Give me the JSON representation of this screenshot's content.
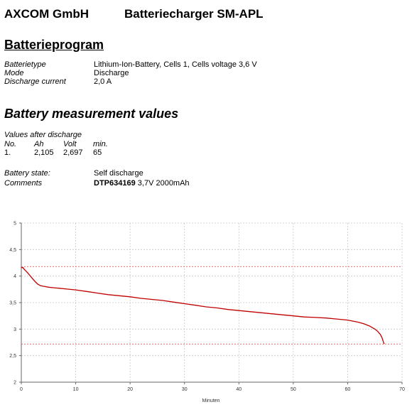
{
  "header": {
    "company": "AXCOM GmbH",
    "product": "Batteriecharger SM-APL"
  },
  "program": {
    "title": "Batterieprogram",
    "fields": [
      {
        "label": "Batterietype",
        "value": "Lithium-Ion-Battery, Cells 1, Cells voltage 3,6 V"
      },
      {
        "label": "Mode",
        "value": "Discharge"
      },
      {
        "label": "Discharge current",
        "value": "2,0 A"
      }
    ]
  },
  "measurement": {
    "title": "Battery measurement values",
    "subtitle": "Values after discharge",
    "columns": [
      "No.",
      "Ah",
      "Volt",
      "min."
    ],
    "rows": [
      [
        "1.",
        "2,105",
        "2,697",
        "65"
      ]
    ],
    "state_label": "Battery state:",
    "state_value": "Self discharge",
    "comments_label": "Comments",
    "comments_bold": "DTP634169",
    "comments_rest": " 3,7V 2000mAh"
  },
  "chart_data": {
    "type": "line",
    "xlabel": "Minuten",
    "ylabel": "",
    "xlim": [
      0,
      70
    ],
    "ylim": [
      2,
      5
    ],
    "x_ticks": [
      0,
      10,
      20,
      30,
      40,
      50,
      60,
      70
    ],
    "y_ticks": [
      2,
      2.5,
      3,
      3.5,
      4,
      4.5,
      5
    ],
    "y_tick_labels": [
      "2",
      "2,5",
      "3",
      "3,5",
      "4",
      "4,5",
      "5"
    ],
    "grid": true,
    "reference_lines": [
      4.18,
      2.72
    ],
    "line_color": "#c00000",
    "ref_line_color": "#d24040",
    "grid_color": "#c8c8c8",
    "series": [
      {
        "x": [
          0,
          0.3,
          0.6,
          1,
          1.5,
          2,
          2.5,
          3,
          3.5,
          4,
          5,
          6,
          7,
          8,
          10,
          12,
          14,
          16,
          18,
          20,
          22,
          24,
          26,
          28,
          30,
          32,
          34,
          36,
          38,
          40,
          42,
          44,
          46,
          48,
          50,
          52,
          54,
          56,
          58,
          60,
          62,
          63,
          64,
          64.5,
          65,
          65.5,
          66,
          66.3,
          66.5,
          66.7
        ],
        "y": [
          4.16,
          4.16,
          4.12,
          4.08,
          4.02,
          3.96,
          3.9,
          3.85,
          3.82,
          3.81,
          3.79,
          3.78,
          3.77,
          3.76,
          3.74,
          3.71,
          3.68,
          3.65,
          3.63,
          3.61,
          3.58,
          3.56,
          3.54,
          3.51,
          3.48,
          3.45,
          3.42,
          3.4,
          3.37,
          3.35,
          3.33,
          3.31,
          3.29,
          3.27,
          3.25,
          3.23,
          3.22,
          3.21,
          3.19,
          3.17,
          3.13,
          3.1,
          3.06,
          3.03,
          3.0,
          2.96,
          2.9,
          2.84,
          2.78,
          2.72
        ]
      }
    ]
  }
}
